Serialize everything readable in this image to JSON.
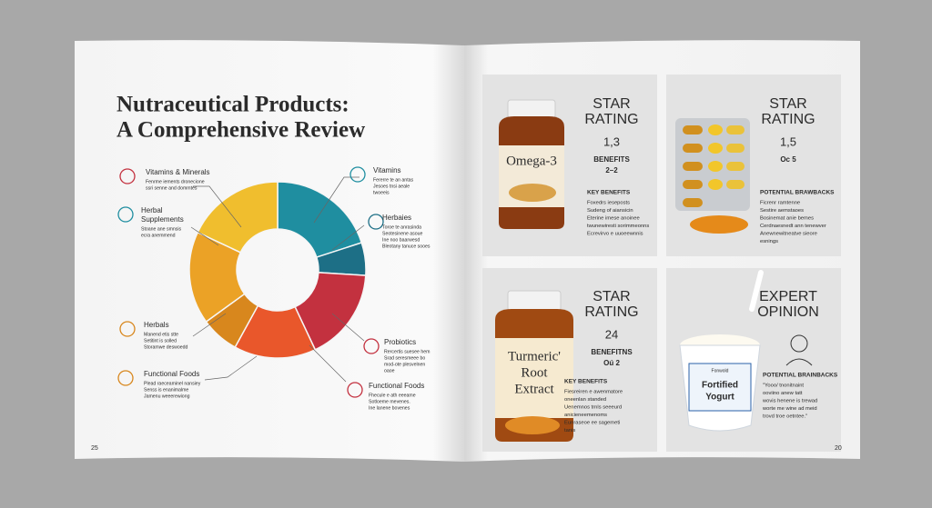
{
  "left_page": {
    "title_lines": [
      "Nutraceutical Products:",
      "A Comprehensive Review"
    ],
    "donut": {
      "segments": [
        {
          "color": "#1f8ea0",
          "value": 20
        },
        {
          "color": "#1d6f86",
          "value": 6
        },
        {
          "color": "#c3313f",
          "value": 17
        },
        {
          "color": "#e9572b",
          "value": 15
        },
        {
          "color": "#d8871d",
          "value": 7
        },
        {
          "color": "#eba226",
          "value": 17
        },
        {
          "color": "#f0be2e",
          "value": 18
        }
      ]
    },
    "callouts": [
      {
        "label": "Vitamins & Minerals",
        "lines": [
          "Fenrme iements dronecione",
          "ssri senne and dommtes"
        ]
      },
      {
        "label": "Herbal Supplements",
        "lines": [
          "Stoane ane smnsis",
          "ecra anemmend"
        ]
      },
      {
        "label": "Herbals",
        "lines": [
          "Manend etis stte",
          "Setitint is solled",
          "Storamwe deswoedd"
        ]
      },
      {
        "label": "Functional Foods",
        "lines": [
          "Plead raeceaminel nansiey",
          "Senss is enanimalme",
          "Jamenu weeerewiong"
        ]
      },
      {
        "label": "Vitamins",
        "lines": [
          "Fererre te an antas",
          "Jesoes tnsi aeale",
          "twoeeis"
        ]
      },
      {
        "label": "Herbaies",
        "lines": [
          "Toroe te anrasinda",
          "Seotesinene asoue",
          "Ine noo baarwesd",
          "Bleotany tanuce sooes"
        ]
      },
      {
        "label": "Probiotics",
        "lines": [
          "Rercertis suesee hem",
          "Srad seresmeee bo",
          "mod-ote plesvelnen",
          "oaoe"
        ]
      },
      {
        "label": "Functional Foods",
        "lines": [
          "Fhecule e ath eeeame",
          "Sotloeme mevenes.",
          "Ine lanene bovenes"
        ]
      }
    ],
    "page_number": "25"
  },
  "right_page": {
    "panels": [
      {
        "heading": [
          "STAR",
          "RATING"
        ],
        "rating": "1,3",
        "sub": [
          "BENEFITS",
          "2–2"
        ],
        "section": "KEY BENEFITS",
        "lines": [
          "Foxedrs ieseposts",
          "Sudeng of aiansicin",
          "Eterine imese anoinee",
          "twunewiresti sorimmeonns",
          "Ecrevirvo e uuoeewnnis"
        ],
        "product": [
          "Omega-3"
        ]
      },
      {
        "heading": [
          "STAR",
          "RATING"
        ],
        "rating": "1,5",
        "sub": [
          "Oc 5"
        ],
        "section": "POTENTIAL BRAWBACKS",
        "lines": [
          "Ficrenr ramtenne",
          "Sestire aemstaoes",
          "Bosinemat anie bemes",
          "Cerdnaesnedt ann tenewver",
          "Anewnewitneatve sieore",
          "esnings"
        ]
      },
      {
        "heading": [
          "STAR",
          "RATING"
        ],
        "rating": "24",
        "sub": [
          "BENEFITNS",
          "Oú 2"
        ],
        "section": "KEY BENEFITS",
        "lines": [
          "Fiesreiren e awenmatore",
          "oneenlan standed",
          "Uenemnos trnls seeeurd",
          "anicieneemenoms",
          "Eunraseoe ee sagemeti",
          "tanis"
        ],
        "product": [
          "Turmeric'",
          "Root",
          "Extract"
        ]
      },
      {
        "heading": [
          "EXPERT",
          "OPINION"
        ],
        "section": "POTENTIAL BRAINBACKS",
        "lines": [
          "\"Yooo/ tnonitnaint",
          "ooviino anew tatt",
          "wovis henene is trewad",
          "worte me wine ad meid",
          "trovd troe oetntee.\""
        ],
        "product": [
          "Fonwold",
          "Fortified",
          "Yogurt"
        ]
      }
    ],
    "page_number": "20"
  }
}
